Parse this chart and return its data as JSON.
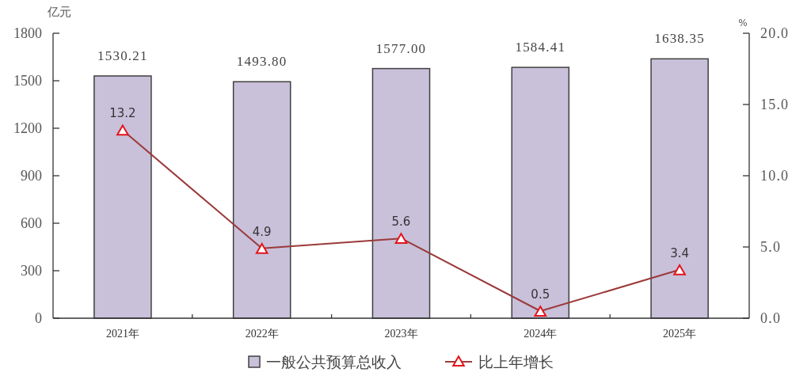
{
  "chart_data": {
    "type": "bar",
    "categories": [
      "2021年",
      "2022年",
      "2023年",
      "2024年",
      "2025年"
    ],
    "ylabel": "亿元",
    "y2label": "%",
    "ylim": [
      0,
      1800
    ],
    "yticks": [
      0,
      300,
      600,
      900,
      1200,
      1500,
      1800
    ],
    "y2lim": [
      0,
      20
    ],
    "y2ticks": [
      {
        "value": 0,
        "label": "0.0"
      },
      {
        "value": 5,
        "label": "5.0"
      },
      {
        "value": 10,
        "label": "10.0"
      },
      {
        "value": 15,
        "label": "15.0"
      },
      {
        "value": 20,
        "label": "20.0"
      }
    ],
    "legend": "bottom",
    "marker": "triangle",
    "series": [
      {
        "name": "一般公共预算总收入",
        "color": "#c9c0da",
        "values": [
          1530.21,
          1493.8,
          1577.0,
          1584.41,
          1638.35
        ],
        "value_labels": [
          "1530.21",
          "1493.80",
          "1577.00",
          "1584.41",
          "1638.35"
        ]
      },
      {
        "type": "line",
        "name": "比上年增长",
        "color": "#9b3a3a",
        "axis": "y2",
        "values": [
          13.2,
          4.9,
          5.6,
          0.5,
          3.4
        ],
        "value_labels": [
          "13.2",
          "4.9",
          "5.6",
          "0.5",
          "3.4"
        ]
      }
    ]
  }
}
